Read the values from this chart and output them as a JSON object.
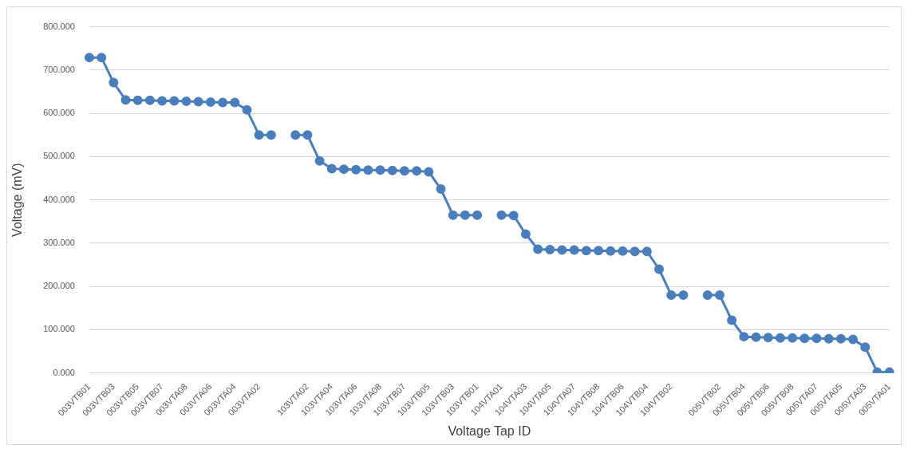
{
  "chart_data": {
    "type": "line",
    "xlabel": "Voltage Tap ID",
    "ylabel": "Voltage (mV)",
    "categories": [
      "003VTB01",
      null,
      "003VTB03",
      null,
      "003VTB05",
      null,
      "003VTB07",
      null,
      "003VTA08",
      null,
      "003VTA06",
      null,
      "003VTA04",
      null,
      "003VTA02",
      null,
      null,
      null,
      "103VTA02",
      null,
      "103VTA04",
      null,
      "103VTA06",
      null,
      "103VTA08",
      null,
      "103VTB07",
      null,
      "103VTB05",
      null,
      "103VTB03",
      null,
      "103VTB01",
      null,
      "104VTA01",
      null,
      "104VTA03",
      null,
      "104VTA05",
      null,
      "104VTA07",
      null,
      "104VTB08",
      null,
      "104VTB06",
      null,
      "104VTB04",
      null,
      "104VTB02",
      null,
      null,
      null,
      "005VTB02",
      null,
      "005VTB04",
      null,
      "005VTB06",
      null,
      "005VTB08",
      null,
      "005VTA07",
      null,
      "005VTA05",
      null,
      "005VTA03",
      null,
      "005VTA01"
    ],
    "series": [
      {
        "color": "#4a7ebb",
        "values": [
          729,
          729,
          671,
          631,
          630,
          630,
          629,
          629,
          628,
          627,
          626,
          625,
          625,
          608,
          550,
          550,
          null,
          550,
          550,
          490,
          472,
          471,
          470,
          469,
          469,
          468,
          467,
          467,
          465,
          425,
          365,
          365,
          365,
          null,
          365,
          364,
          321,
          286,
          285,
          284,
          284,
          283,
          283,
          282,
          282,
          281,
          281,
          240,
          180,
          180,
          null,
          180,
          180,
          122,
          84,
          83,
          82,
          81,
          81,
          80,
          80,
          79,
          79,
          78,
          60,
          2,
          2
        ]
      }
    ],
    "ylim": [
      0,
      800
    ],
    "yticks": [
      {
        "value": 0,
        "label": "0.000"
      },
      {
        "value": 100,
        "label": "100.000"
      },
      {
        "value": 200,
        "label": "200.000"
      },
      {
        "value": 300,
        "label": "300.000"
      },
      {
        "value": 400,
        "label": "400.000"
      },
      {
        "value": 500,
        "label": "500.000"
      },
      {
        "value": 600,
        "label": "600.000"
      },
      {
        "value": 700,
        "label": "700.000"
      },
      {
        "value": 800,
        "label": "800.000"
      }
    ],
    "grid": "y",
    "legend": false,
    "marker": "circle",
    "line_style": "solid"
  }
}
